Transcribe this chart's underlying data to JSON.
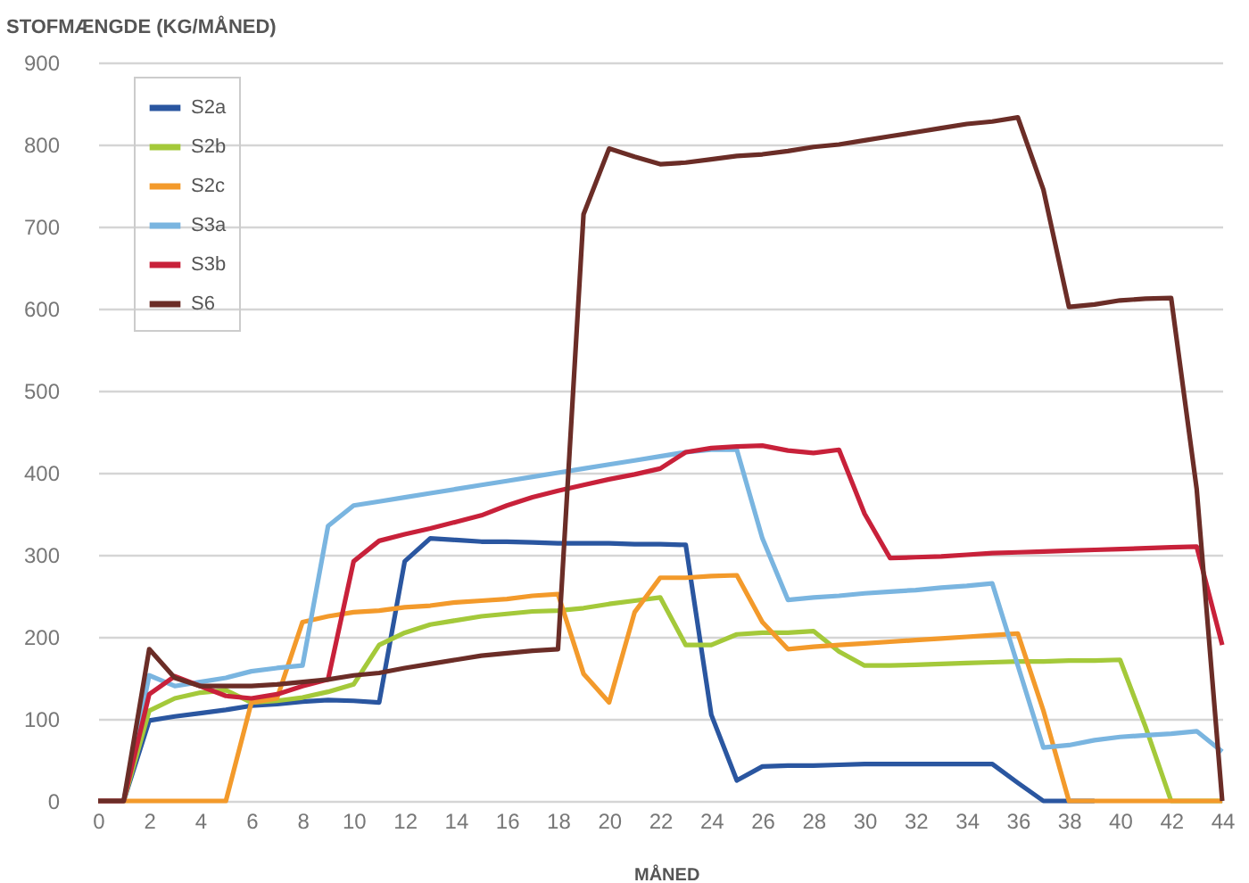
{
  "chart_data": {
    "type": "line",
    "xlabel": "MÅNED",
    "ylabel": "STOFMÆNGDE (KG/MÅNED)",
    "x": [
      0,
      1,
      2,
      3,
      4,
      5,
      6,
      7,
      8,
      9,
      10,
      11,
      12,
      13,
      14,
      15,
      16,
      17,
      18,
      19,
      20,
      21,
      22,
      23,
      24,
      25,
      26,
      27,
      28,
      29,
      30,
      31,
      32,
      33,
      34,
      35,
      36,
      37,
      38,
      39,
      40,
      41,
      42,
      43,
      44
    ],
    "series": [
      {
        "name": "S2a",
        "color": "#2a56a0",
        "values": [
          0,
          0,
          98,
          103,
          107,
          111,
          116,
          118,
          121,
          123,
          122,
          120,
          292,
          320,
          318,
          316,
          316,
          315,
          314,
          314,
          314,
          313,
          313,
          312,
          105,
          25,
          42,
          43,
          43,
          44,
          45,
          45,
          45,
          45,
          45,
          45,
          22,
          0,
          0,
          0,
          null,
          null,
          null,
          null,
          null
        ]
      },
      {
        "name": "S2b",
        "color": "#a4c93a",
        "values": [
          0,
          0,
          110,
          125,
          132,
          135,
          120,
          122,
          126,
          133,
          142,
          190,
          205,
          215,
          220,
          225,
          228,
          231,
          232,
          235,
          240,
          244,
          248,
          190,
          190,
          203,
          205,
          205,
          207,
          182,
          165,
          165,
          166,
          167,
          168,
          169,
          170,
          170,
          171,
          171,
          172,
          90,
          0,
          0,
          0
        ]
      },
      {
        "name": "S2c",
        "color": "#f39a2b",
        "values": [
          0,
          0,
          0,
          0,
          0,
          0,
          120,
          125,
          218,
          225,
          230,
          232,
          236,
          238,
          242,
          244,
          246,
          250,
          252,
          155,
          120,
          230,
          272,
          272,
          274,
          275,
          218,
          185,
          188,
          190,
          192,
          194,
          196,
          198,
          200,
          202,
          204,
          110,
          0,
          0,
          0,
          0,
          0,
          0,
          0
        ]
      },
      {
        "name": "S3a",
        "color": "#7ab5e0",
        "values": [
          0,
          0,
          153,
          140,
          145,
          150,
          158,
          162,
          165,
          335,
          360,
          365,
          370,
          375,
          380,
          385,
          390,
          395,
          400,
          405,
          410,
          415,
          420,
          425,
          428,
          428,
          320,
          245,
          248,
          250,
          253,
          255,
          257,
          260,
          262,
          265,
          165,
          65,
          68,
          74,
          78,
          80,
          82,
          85,
          60
        ]
      },
      {
        "name": "S3b",
        "color": "#c8213a",
        "values": [
          0,
          0,
          130,
          152,
          140,
          128,
          125,
          130,
          140,
          148,
          292,
          317,
          325,
          332,
          340,
          348,
          360,
          370,
          378,
          385,
          392,
          398,
          405,
          425,
          430,
          432,
          433,
          427,
          424,
          428,
          350,
          296,
          297,
          298,
          300,
          302,
          303,
          304,
          305,
          306,
          307,
          308,
          309,
          310,
          190
        ]
      },
      {
        "name": "S6",
        "color": "#6b2d27",
        "values": [
          0,
          0,
          185,
          150,
          140,
          140,
          140,
          142,
          145,
          148,
          153,
          156,
          162,
          167,
          172,
          177,
          180,
          183,
          185,
          715,
          795,
          785,
          776,
          778,
          782,
          786,
          788,
          792,
          797,
          800,
          805,
          810,
          815,
          820,
          825,
          828,
          833,
          745,
          602,
          605,
          610,
          612,
          613,
          380,
          0
        ]
      }
    ],
    "xlim": [
      0,
      44
    ],
    "xticks": [
      0,
      2,
      4,
      6,
      8,
      10,
      12,
      14,
      16,
      18,
      20,
      22,
      24,
      26,
      28,
      30,
      32,
      34,
      36,
      38,
      40,
      42,
      44
    ],
    "ylim": [
      0,
      900
    ],
    "yticks": [
      0,
      100,
      200,
      300,
      400,
      500,
      600,
      700,
      800,
      900
    ],
    "grid": "y",
    "legend": "top left",
    "marker": "none",
    "line_style": "solid"
  }
}
